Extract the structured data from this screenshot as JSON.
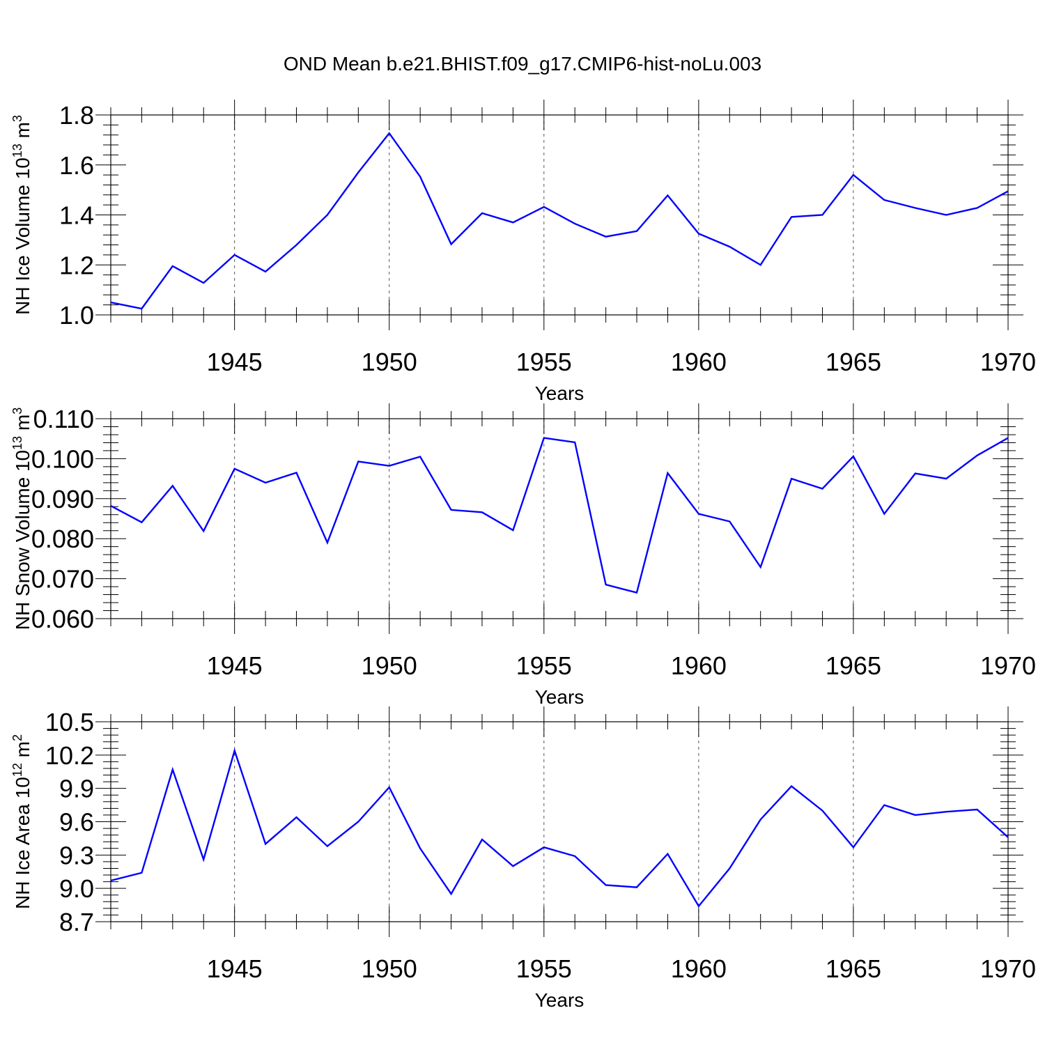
{
  "figure": {
    "title": "OND Mean b.e21.BHIST.f09_g17.CMIP6-hist-noLu.003",
    "line_color": "#0000ff",
    "grid_color": "#555555"
  },
  "chart_data": [
    {
      "type": "line",
      "xlabel": "Years",
      "ylabel_text": "NH Ice Volume 10",
      "ylabel_exp": "13",
      "ylabel_unit": " m",
      "ylabel_unit_exp": "3",
      "xlim": [
        1941,
        1970
      ],
      "ylim": [
        1.0,
        1.8
      ],
      "yticks": [
        1.0,
        1.2,
        1.4,
        1.6,
        1.8
      ],
      "ytick_labels": [
        "1.0",
        "1.2",
        "1.4",
        "1.6",
        "1.8"
      ],
      "yminor_step": 0.04,
      "xticks": [
        1945,
        1950,
        1955,
        1960,
        1965,
        1970
      ],
      "xtick_labels": [
        "1945",
        "1950",
        "1955",
        "1960",
        "1965",
        "1970"
      ],
      "grid": "vertical dashed at major x ticks",
      "x": [
        1941,
        1942,
        1943,
        1944,
        1945,
        1946,
        1947,
        1948,
        1949,
        1950,
        1951,
        1952,
        1953,
        1954,
        1955,
        1956,
        1957,
        1958,
        1959,
        1960,
        1961,
        1962,
        1963,
        1964,
        1965,
        1966,
        1967,
        1968,
        1969,
        1970
      ],
      "series": [
        {
          "name": "NH Ice Volume",
          "values": [
            1.05,
            1.025,
            1.195,
            1.128,
            1.24,
            1.173,
            1.28,
            1.4,
            1.57,
            1.727,
            1.553,
            1.283,
            1.407,
            1.37,
            1.432,
            1.365,
            1.313,
            1.335,
            1.478,
            1.325,
            1.273,
            1.2,
            1.392,
            1.4,
            1.56,
            1.46,
            1.428,
            1.4,
            1.428,
            1.495
          ]
        }
      ]
    },
    {
      "type": "line",
      "xlabel": "Years",
      "ylabel_text": "NH Snow Volume 10",
      "ylabel_exp": "13",
      "ylabel_unit": " m",
      "ylabel_unit_exp": "3",
      "xlim": [
        1941,
        1970
      ],
      "ylim": [
        0.06,
        0.11
      ],
      "yticks": [
        0.06,
        0.07,
        0.08,
        0.09,
        0.1,
        0.11
      ],
      "ytick_labels": [
        "0.060",
        "0.070",
        "0.080",
        "0.090",
        "0.100",
        "0.110"
      ],
      "yminor_step": 0.002,
      "xticks": [
        1945,
        1950,
        1955,
        1960,
        1965,
        1970
      ],
      "xtick_labels": [
        "1945",
        "1950",
        "1955",
        "1960",
        "1965",
        "1970"
      ],
      "grid": "vertical dashed at major x ticks",
      "x": [
        1941,
        1942,
        1943,
        1944,
        1945,
        1946,
        1947,
        1948,
        1949,
        1950,
        1951,
        1952,
        1953,
        1954,
        1955,
        1956,
        1957,
        1958,
        1959,
        1960,
        1961,
        1962,
        1963,
        1964,
        1965,
        1966,
        1967,
        1968,
        1969,
        1970
      ],
      "series": [
        {
          "name": "NH Snow Volume",
          "values": [
            0.0882,
            0.0841,
            0.0932,
            0.0819,
            0.0975,
            0.094,
            0.0965,
            0.079,
            0.0993,
            0.0982,
            0.1005,
            0.0872,
            0.0866,
            0.0821,
            0.1052,
            0.1041,
            0.0685,
            0.0665,
            0.0964,
            0.0862,
            0.0843,
            0.0729,
            0.095,
            0.0925,
            0.1006,
            0.0862,
            0.0963,
            0.095,
            0.1008,
            0.1052
          ]
        }
      ]
    },
    {
      "type": "line",
      "xlabel": "Years",
      "ylabel_text": "NH Ice Area 10",
      "ylabel_exp": "12",
      "ylabel_unit": " m",
      "ylabel_unit_exp": "2",
      "xlim": [
        1941,
        1970
      ],
      "ylim": [
        8.7,
        10.5
      ],
      "yticks": [
        8.7,
        9.0,
        9.3,
        9.6,
        9.9,
        10.2,
        10.5
      ],
      "ytick_labels": [
        "8.7",
        "9.0",
        "9.3",
        "9.6",
        "9.9",
        "10.2",
        "10.5"
      ],
      "yminor_step": 0.06,
      "xticks": [
        1945,
        1950,
        1955,
        1960,
        1965,
        1970
      ],
      "xtick_labels": [
        "1945",
        "1950",
        "1955",
        "1960",
        "1965",
        "1970"
      ],
      "grid": "vertical dashed at major x ticks",
      "x": [
        1941,
        1942,
        1943,
        1944,
        1945,
        1946,
        1947,
        1948,
        1949,
        1950,
        1951,
        1952,
        1953,
        1954,
        1955,
        1956,
        1957,
        1958,
        1959,
        1960,
        1961,
        1962,
        1963,
        1964,
        1965,
        1966,
        1967,
        1968,
        1969,
        1970
      ],
      "series": [
        {
          "name": "NH Ice Area",
          "values": [
            9.07,
            9.14,
            10.07,
            9.26,
            10.24,
            9.4,
            9.64,
            9.38,
            9.6,
            9.91,
            9.36,
            8.95,
            9.44,
            9.2,
            9.37,
            9.29,
            9.03,
            9.01,
            9.31,
            8.84,
            9.18,
            9.62,
            9.92,
            9.7,
            9.37,
            9.75,
            9.66,
            9.69,
            9.71,
            9.46
          ]
        }
      ]
    }
  ]
}
